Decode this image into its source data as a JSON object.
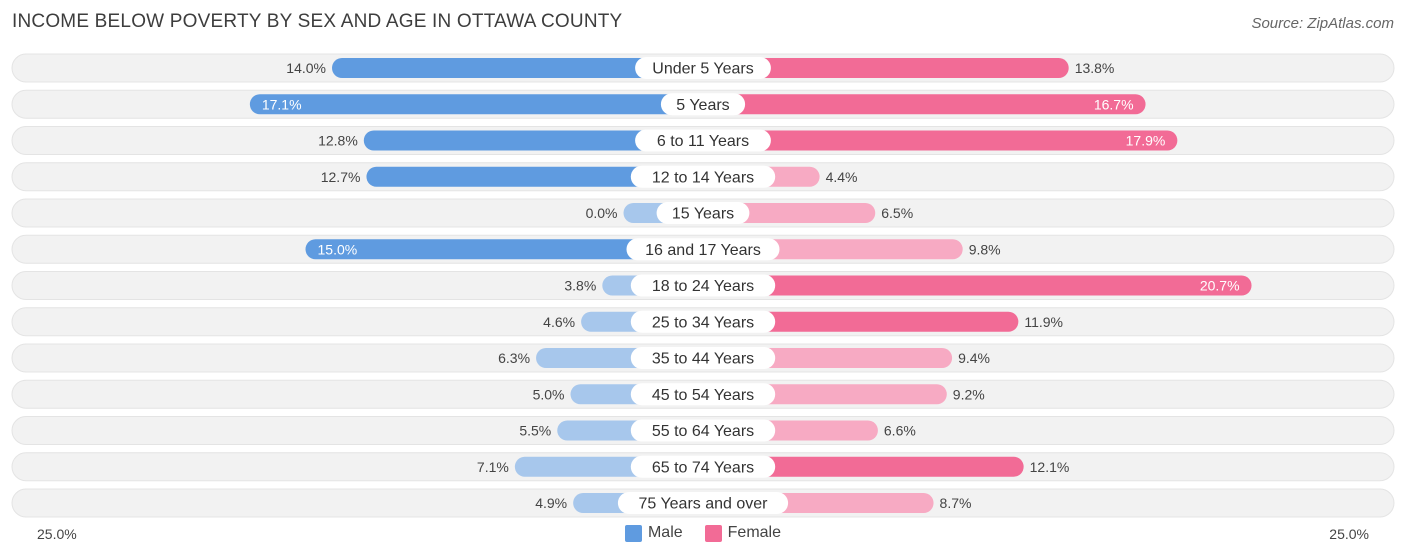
{
  "header": {
    "title": "INCOME BELOW POVERTY BY SEX AND AGE IN OTTAWA COUNTY",
    "source": "Source: ZipAtlas.com"
  },
  "colors": {
    "male_strong": "#5f9be0",
    "male_light": "#a7c7ec",
    "female_strong": "#f26b96",
    "female_light": "#f7aac3",
    "track": "#f2f2f2"
  },
  "legend": {
    "male": "Male",
    "female": "Female"
  },
  "axis": {
    "left_label": "25.0%",
    "right_label": "25.0%"
  },
  "chart_data": {
    "type": "bar",
    "title": "INCOME BELOW POVERTY BY SEX AND AGE IN OTTAWA COUNTY",
    "orientation": "horizontal-diverging",
    "xlim": [
      0,
      25
    ],
    "categories": [
      "Under 5 Years",
      "5 Years",
      "6 to 11 Years",
      "12 to 14 Years",
      "15 Years",
      "16 and 17 Years",
      "18 to 24 Years",
      "25 to 34 Years",
      "35 to 44 Years",
      "45 to 54 Years",
      "55 to 64 Years",
      "65 to 74 Years",
      "75 Years and over"
    ],
    "series": [
      {
        "name": "Male",
        "values": [
          14.0,
          17.1,
          12.8,
          12.7,
          0.0,
          15.0,
          3.8,
          4.6,
          6.3,
          5.0,
          5.5,
          7.1,
          4.9
        ],
        "labels": [
          "14.0%",
          "17.1%",
          "12.8%",
          "12.7%",
          "0.0%",
          "15.0%",
          "3.8%",
          "4.6%",
          "6.3%",
          "5.0%",
          "5.5%",
          "7.1%",
          "4.9%"
        ]
      },
      {
        "name": "Female",
        "values": [
          13.8,
          16.7,
          17.9,
          4.4,
          6.5,
          9.8,
          20.7,
          11.9,
          9.4,
          9.2,
          6.6,
          12.1,
          8.7
        ],
        "labels": [
          "13.8%",
          "16.7%",
          "17.9%",
          "4.4%",
          "6.5%",
          "9.8%",
          "20.7%",
          "11.9%",
          "9.4%",
          "9.2%",
          "6.6%",
          "12.1%",
          "8.7%"
        ]
      }
    ]
  }
}
